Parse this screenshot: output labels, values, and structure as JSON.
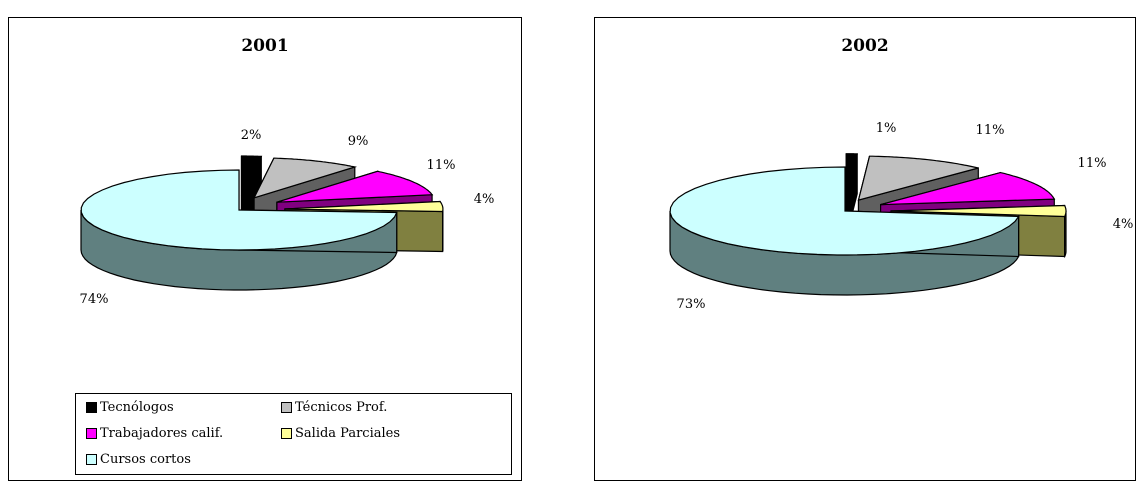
{
  "chart_data": [
    {
      "type": "pie",
      "title": "2001",
      "categories": [
        "Tecnólogos",
        "Técnicos Prof.",
        "Trabajadores calif.",
        "Salida Parciales",
        "Cursos cortos"
      ],
      "values": [
        2,
        9,
        11,
        4,
        74
      ],
      "labels": [
        "2%",
        "9%",
        "11%",
        "4%",
        "74%"
      ],
      "legend": "bottom"
    },
    {
      "type": "pie",
      "title": "2002",
      "categories": [
        "Tecnólogos",
        "Técnicos Prof.",
        "Trabajadores calif.",
        "Salida Parciales",
        "Cursos cortos"
      ],
      "values": [
        1,
        11,
        11,
        4,
        73
      ],
      "labels": [
        "1%",
        "11%",
        "11%",
        "4%",
        "73%"
      ]
    }
  ],
  "legend_items": [
    {
      "label": "Tecnólogos",
      "color": "#000000"
    },
    {
      "label": "Técnicos Prof.",
      "color": "#c0c0c0"
    },
    {
      "label": "Trabajadores calif.",
      "color": "#ff00ff"
    },
    {
      "label": "Salida Parciales",
      "color": "#ffff99"
    },
    {
      "label": "Cursos cortos",
      "color": "#ccffff"
    }
  ],
  "colors": {
    "top": [
      "#000000",
      "#c0c0c0",
      "#ff00ff",
      "#ffff99",
      "#ccffff"
    ],
    "side": [
      "#000000",
      "#606060",
      "#800080",
      "#808040",
      "#608080"
    ]
  }
}
